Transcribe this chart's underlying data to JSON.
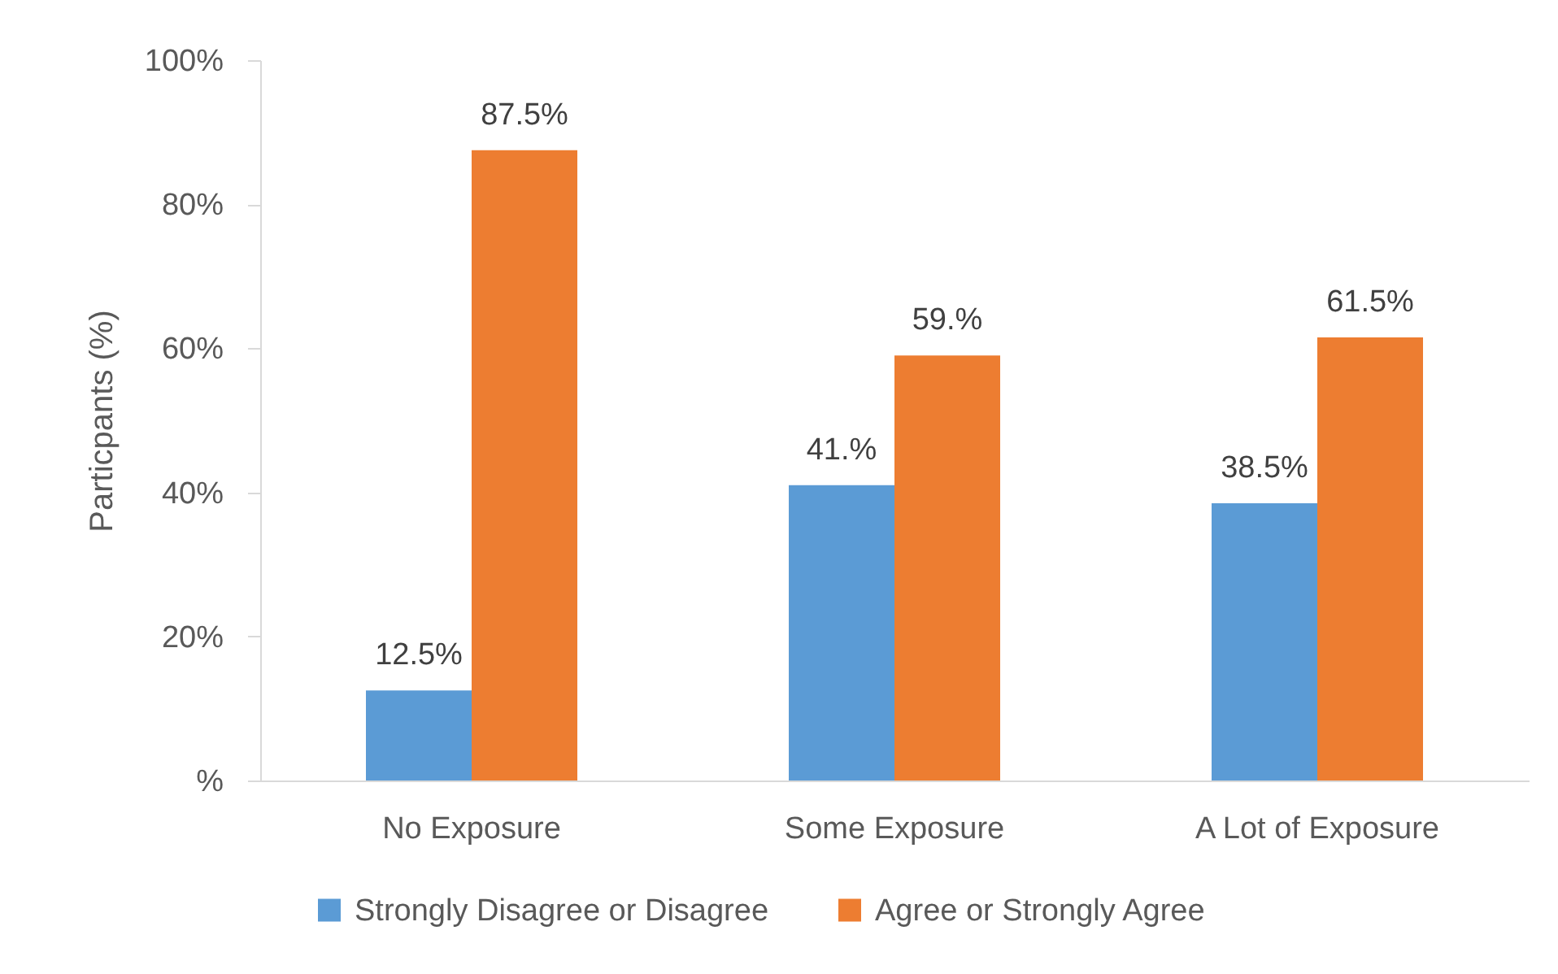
{
  "chart_data": {
    "type": "bar",
    "ylabel": "Particpants (%)",
    "categories": [
      "No Exposure",
      "Some Exposure",
      "A Lot of Exposure"
    ],
    "series": [
      {
        "name": "Strongly Disagree or Disagree",
        "color": "#5b9bd5",
        "values": [
          12.5,
          41,
          38.5
        ],
        "value_labels": [
          "12.5%",
          "41.%",
          "38.5%"
        ]
      },
      {
        "name": "Agree or Strongly Agree",
        "color": "#ed7d31",
        "values": [
          87.5,
          59,
          61.5
        ],
        "value_labels": [
          "87.5%",
          "59.%",
          "61.5%"
        ]
      }
    ],
    "ylim": [
      0,
      100
    ],
    "yticks": [
      {
        "value": 0,
        "label": "%"
      },
      {
        "value": 20,
        "label": "20%"
      },
      {
        "value": 40,
        "label": "40%"
      },
      {
        "value": 60,
        "label": "60%"
      },
      {
        "value": 80,
        "label": "80%"
      },
      {
        "value": 100,
        "label": "100%"
      }
    ],
    "grid": false,
    "legend": "bottom"
  }
}
